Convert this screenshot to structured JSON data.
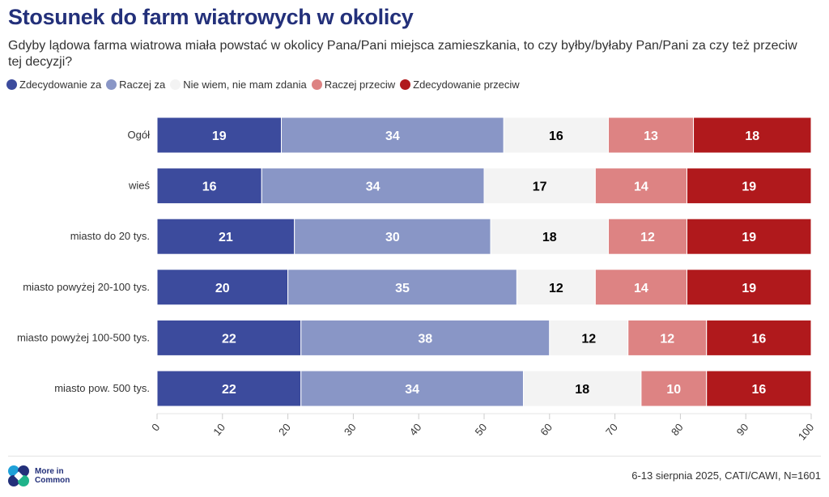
{
  "title": "Stosunek do farm wiatrowych w okolicy",
  "subtitle": "Gdyby lądowa farma wiatrowa miała powstać w okolicy Pana/Pani miejsca zamieszkania, to czy byłby/byłaby Pan/Pani za czy też przeciw tej decyzji?",
  "footer": {
    "logo_text_1": "More in",
    "logo_text_2": "Common",
    "source": "6-13 sierpnia 2025, CATI/CAWI, N=1601"
  },
  "chart_data": {
    "type": "bar",
    "orientation": "horizontal",
    "stacked": true,
    "categories": [
      "Ogół",
      "wieś",
      "miasto do 20 tys.",
      "miasto powyżej 20-100 tys.",
      "miasto powyżej 100-500 tys.",
      "miasto pow. 500 tys."
    ],
    "series": [
      {
        "name": "Zdecydowanie za",
        "color": "#3c4b9d",
        "label_color": "#ffffff",
        "values": [
          19,
          16,
          21,
          20,
          22,
          22
        ]
      },
      {
        "name": "Raczej za",
        "color": "#8996c6",
        "label_color": "#ffffff",
        "values": [
          34,
          34,
          30,
          35,
          38,
          34
        ]
      },
      {
        "name": "Nie wiem, nie mam zdania",
        "color": "#f3f3f3",
        "label_color": "#000000",
        "values": [
          16,
          17,
          18,
          12,
          12,
          18
        ]
      },
      {
        "name": "Raczej przeciw",
        "color": "#dd8383",
        "label_color": "#ffffff",
        "values": [
          13,
          14,
          12,
          14,
          12,
          10
        ]
      },
      {
        "name": "Zdecydowanie przeciw",
        "color": "#b0191c",
        "label_color": "#ffffff",
        "values": [
          18,
          19,
          19,
          19,
          16,
          16
        ]
      }
    ],
    "xlim": [
      0,
      100
    ],
    "xticks": [
      0,
      10,
      20,
      30,
      40,
      50,
      60,
      70,
      80,
      90,
      100
    ],
    "legend": "top-left",
    "grid": false
  }
}
